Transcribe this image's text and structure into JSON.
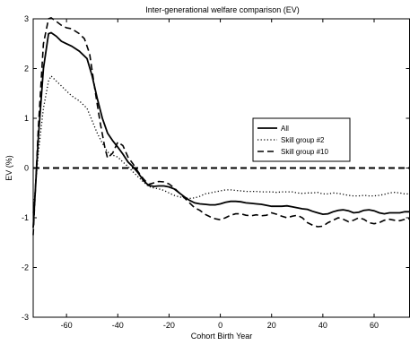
{
  "chart_data": {
    "type": "line",
    "title": "Inter-generational welfare comparison (EV)",
    "xlabel": "Cohort Birth Year",
    "ylabel": "EV (%)",
    "xlim": [
      -73,
      74
    ],
    "ylim": [
      -3,
      3
    ],
    "xticks": [
      -60,
      -40,
      -20,
      0,
      20,
      40,
      60
    ],
    "yticks": [
      -3,
      -2,
      -1,
      0,
      1,
      2,
      3
    ],
    "grid": false,
    "legend_position": "center-right",
    "reference_line": {
      "y": 0,
      "style": "dashed"
    },
    "series": [
      {
        "name": "All",
        "style": "solid",
        "color": "#000000",
        "points": [
          [
            -73,
            -1.2
          ],
          [
            -71,
            0.6
          ],
          [
            -69,
            2.0
          ],
          [
            -67,
            2.7
          ],
          [
            -66,
            2.72
          ],
          [
            -64,
            2.65
          ],
          [
            -62,
            2.55
          ],
          [
            -60,
            2.5
          ],
          [
            -58,
            2.45
          ],
          [
            -55,
            2.35
          ],
          [
            -52,
            2.2
          ],
          [
            -50,
            1.85
          ],
          [
            -48,
            1.4
          ],
          [
            -46,
            1.0
          ],
          [
            -44,
            0.7
          ],
          [
            -42,
            0.55
          ],
          [
            -40,
            0.42
          ],
          [
            -38,
            0.28
          ],
          [
            -36,
            0.12
          ],
          [
            -34,
            0.02
          ],
          [
            -32,
            -0.1
          ],
          [
            -30,
            -0.25
          ],
          [
            -28,
            -0.35
          ],
          [
            -26,
            -0.37
          ],
          [
            -24,
            -0.36
          ],
          [
            -22,
            -0.36
          ],
          [
            -20,
            -0.38
          ],
          [
            -18,
            -0.42
          ],
          [
            -16,
            -0.5
          ],
          [
            -14,
            -0.58
          ],
          [
            -12,
            -0.65
          ],
          [
            -10,
            -0.7
          ],
          [
            -8,
            -0.72
          ],
          [
            -6,
            -0.73
          ],
          [
            -4,
            -0.74
          ],
          [
            -2,
            -0.74
          ],
          [
            0,
            -0.72
          ],
          [
            2,
            -0.69
          ],
          [
            4,
            -0.67
          ],
          [
            6,
            -0.67
          ],
          [
            8,
            -0.68
          ],
          [
            10,
            -0.7
          ],
          [
            12,
            -0.71
          ],
          [
            14,
            -0.72
          ],
          [
            16,
            -0.73
          ],
          [
            18,
            -0.75
          ],
          [
            20,
            -0.77
          ],
          [
            22,
            -0.77
          ],
          [
            24,
            -0.77
          ],
          [
            26,
            -0.76
          ],
          [
            28,
            -0.78
          ],
          [
            30,
            -0.8
          ],
          [
            32,
            -0.82
          ],
          [
            34,
            -0.83
          ],
          [
            36,
            -0.87
          ],
          [
            38,
            -0.9
          ],
          [
            40,
            -0.93
          ],
          [
            42,
            -0.92
          ],
          [
            44,
            -0.88
          ],
          [
            46,
            -0.85
          ],
          [
            48,
            -0.84
          ],
          [
            50,
            -0.86
          ],
          [
            52,
            -0.9
          ],
          [
            54,
            -0.89
          ],
          [
            56,
            -0.85
          ],
          [
            58,
            -0.84
          ],
          [
            60,
            -0.86
          ],
          [
            62,
            -0.9
          ],
          [
            64,
            -0.92
          ],
          [
            66,
            -0.9
          ],
          [
            68,
            -0.9
          ],
          [
            70,
            -0.9
          ],
          [
            72,
            -0.88
          ],
          [
            74,
            -0.88
          ]
        ]
      },
      {
        "name": "Skill group #2",
        "style": "dotted",
        "color": "#000000",
        "points": [
          [
            -73,
            -0.9
          ],
          [
            -71,
            0.3
          ],
          [
            -69,
            1.2
          ],
          [
            -67,
            1.75
          ],
          [
            -66,
            1.85
          ],
          [
            -64,
            1.75
          ],
          [
            -62,
            1.65
          ],
          [
            -60,
            1.55
          ],
          [
            -58,
            1.45
          ],
          [
            -55,
            1.35
          ],
          [
            -52,
            1.2
          ],
          [
            -50,
            0.95
          ],
          [
            -48,
            0.7
          ],
          [
            -46,
            0.5
          ],
          [
            -44,
            0.32
          ],
          [
            -42,
            0.26
          ],
          [
            -40,
            0.22
          ],
          [
            -38,
            0.12
          ],
          [
            -36,
            0.03
          ],
          [
            -34,
            -0.08
          ],
          [
            -32,
            -0.18
          ],
          [
            -30,
            -0.28
          ],
          [
            -28,
            -0.37
          ],
          [
            -26,
            -0.4
          ],
          [
            -24,
            -0.42
          ],
          [
            -22,
            -0.45
          ],
          [
            -20,
            -0.5
          ],
          [
            -18,
            -0.55
          ],
          [
            -16,
            -0.58
          ],
          [
            -14,
            -0.6
          ],
          [
            -12,
            -0.61
          ],
          [
            -10,
            -0.6
          ],
          [
            -8,
            -0.57
          ],
          [
            -6,
            -0.52
          ],
          [
            -4,
            -0.5
          ],
          [
            -2,
            -0.48
          ],
          [
            0,
            -0.46
          ],
          [
            2,
            -0.44
          ],
          [
            4,
            -0.44
          ],
          [
            6,
            -0.45
          ],
          [
            8,
            -0.46
          ],
          [
            10,
            -0.47
          ],
          [
            12,
            -0.47
          ],
          [
            14,
            -0.47
          ],
          [
            16,
            -0.48
          ],
          [
            18,
            -0.48
          ],
          [
            20,
            -0.48
          ],
          [
            22,
            -0.49
          ],
          [
            24,
            -0.48
          ],
          [
            26,
            -0.48
          ],
          [
            28,
            -0.48
          ],
          [
            30,
            -0.5
          ],
          [
            32,
            -0.51
          ],
          [
            34,
            -0.5
          ],
          [
            36,
            -0.5
          ],
          [
            38,
            -0.49
          ],
          [
            40,
            -0.52
          ],
          [
            42,
            -0.52
          ],
          [
            44,
            -0.5
          ],
          [
            46,
            -0.51
          ],
          [
            48,
            -0.53
          ],
          [
            50,
            -0.55
          ],
          [
            52,
            -0.56
          ],
          [
            54,
            -0.56
          ],
          [
            56,
            -0.55
          ],
          [
            58,
            -0.56
          ],
          [
            60,
            -0.56
          ],
          [
            62,
            -0.55
          ],
          [
            64,
            -0.53
          ],
          [
            66,
            -0.5
          ],
          [
            68,
            -0.49
          ],
          [
            70,
            -0.5
          ],
          [
            72,
            -0.52
          ],
          [
            74,
            -0.52
          ]
        ]
      },
      {
        "name": "Skill group #10",
        "style": "dashed",
        "color": "#000000",
        "points": [
          [
            -73,
            -1.35
          ],
          [
            -71,
            0.8
          ],
          [
            -69,
            2.5
          ],
          [
            -67,
            3.0
          ],
          [
            -66,
            3.02
          ],
          [
            -64,
            2.95
          ],
          [
            -62,
            2.87
          ],
          [
            -60,
            2.82
          ],
          [
            -58,
            2.8
          ],
          [
            -55,
            2.7
          ],
          [
            -53,
            2.6
          ],
          [
            -51,
            2.3
          ],
          [
            -49,
            1.6
          ],
          [
            -47,
            0.95
          ],
          [
            -45,
            0.4
          ],
          [
            -44,
            0.2
          ],
          [
            -42,
            0.3
          ],
          [
            -40,
            0.52
          ],
          [
            -38,
            0.45
          ],
          [
            -36,
            0.22
          ],
          [
            -34,
            0.08
          ],
          [
            -32,
            -0.08
          ],
          [
            -30,
            -0.22
          ],
          [
            -28,
            -0.33
          ],
          [
            -26,
            -0.3
          ],
          [
            -24,
            -0.27
          ],
          [
            -22,
            -0.28
          ],
          [
            -20,
            -0.32
          ],
          [
            -18,
            -0.4
          ],
          [
            -16,
            -0.5
          ],
          [
            -14,
            -0.6
          ],
          [
            -12,
            -0.7
          ],
          [
            -10,
            -0.8
          ],
          [
            -8,
            -0.85
          ],
          [
            -6,
            -0.93
          ],
          [
            -4,
            -0.98
          ],
          [
            -2,
            -1.02
          ],
          [
            0,
            -1.04
          ],
          [
            2,
            -1.0
          ],
          [
            4,
            -0.95
          ],
          [
            6,
            -0.92
          ],
          [
            8,
            -0.92
          ],
          [
            10,
            -0.95
          ],
          [
            12,
            -0.96
          ],
          [
            14,
            -0.94
          ],
          [
            16,
            -0.96
          ],
          [
            18,
            -0.95
          ],
          [
            20,
            -0.9
          ],
          [
            22,
            -0.93
          ],
          [
            24,
            -0.97
          ],
          [
            26,
            -1.0
          ],
          [
            28,
            -0.97
          ],
          [
            30,
            -0.95
          ],
          [
            32,
            -1.0
          ],
          [
            34,
            -1.1
          ],
          [
            36,
            -1.15
          ],
          [
            38,
            -1.18
          ],
          [
            40,
            -1.17
          ],
          [
            42,
            -1.1
          ],
          [
            44,
            -1.05
          ],
          [
            46,
            -1.0
          ],
          [
            48,
            -1.03
          ],
          [
            50,
            -1.08
          ],
          [
            52,
            -1.05
          ],
          [
            54,
            -1.0
          ],
          [
            56,
            -1.03
          ],
          [
            58,
            -1.1
          ],
          [
            60,
            -1.12
          ],
          [
            62,
            -1.1
          ],
          [
            64,
            -1.05
          ],
          [
            66,
            -1.03
          ],
          [
            68,
            -1.05
          ],
          [
            70,
            -1.06
          ],
          [
            72,
            -1.03
          ],
          [
            74,
            -1.02
          ]
        ]
      }
    ]
  }
}
